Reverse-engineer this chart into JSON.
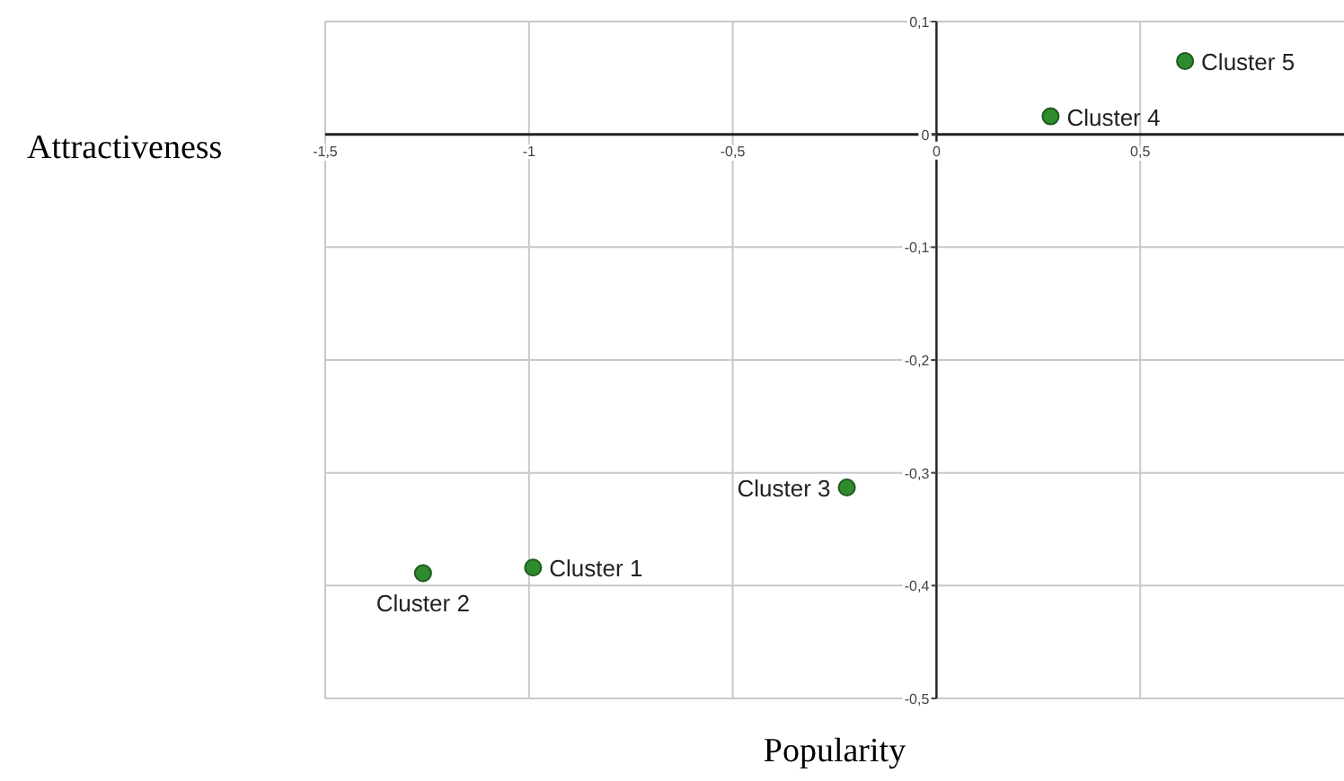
{
  "chart_data": {
    "type": "scatter",
    "xlabel": "Popularity",
    "ylabel": "Attractiveness",
    "marker": "circle",
    "grid": true,
    "series": [
      {
        "color": "#2e8b2e",
        "x": [
          -0.99,
          -1.26,
          -0.22,
          0.28,
          0.61
        ],
        "values": [
          -0.384,
          -0.389,
          -0.313,
          0.016,
          0.065
        ]
      }
    ],
    "xlim": [
      -1.5,
      1
    ],
    "xticks": [
      {
        "value": -1.5,
        "label": "-1,5"
      },
      {
        "value": -1,
        "label": "-1"
      },
      {
        "value": -0.5,
        "label": "-0,5"
      },
      {
        "value": 0,
        "label": "0"
      },
      {
        "value": 0.5,
        "label": "0,5"
      }
    ],
    "ylim": [
      -0.5,
      0.1
    ],
    "yticks": [
      {
        "value": 0.1,
        "label": "0,1"
      },
      {
        "value": 0,
        "label": "0"
      },
      {
        "value": -0.1,
        "label": "-0,1"
      },
      {
        "value": -0.2,
        "label": "-0,2"
      },
      {
        "value": -0.3,
        "label": "-0,3"
      },
      {
        "value": -0.4,
        "label": "-0,4"
      },
      {
        "value": -0.5,
        "label": "-0,5"
      }
    ],
    "annotations": [
      {
        "text": "Cluster 1",
        "x": -0.99,
        "y": -0.384
      },
      {
        "text": "Cluster 2",
        "x": -1.26,
        "y": -0.389
      },
      {
        "text": "Cluster 3",
        "x": -0.22,
        "y": -0.313
      },
      {
        "text": "Cluster 4",
        "x": 0.28,
        "y": 0.016
      },
      {
        "text": "Cluster 5",
        "x": 0.61,
        "y": 0.065
      }
    ]
  }
}
